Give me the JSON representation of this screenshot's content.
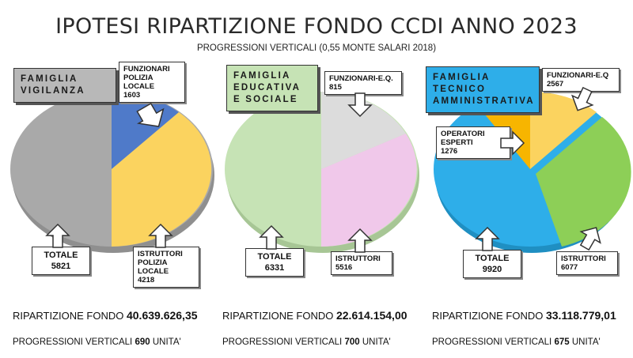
{
  "title": "IPOTESI RIPARTIZIONE FONDO CCDI ANNO 2023",
  "subtitle": "PROGRESSIONI VERTICALI (0,55 MONTE SALARI 2018)",
  "labels": {
    "fondo": "RIPARTIZIONE FONDO",
    "progressioni": "PROGRESSIONI VERTICALI",
    "unita": "UNITA'",
    "totale": "TOTALE"
  },
  "colors": {
    "gray": "#a9a9a9",
    "blue": "#4f7ac9",
    "yellow": "#fbd35f",
    "light_green": "#c6e3b5",
    "light_gray": "#dcdcdc",
    "pink": "#f0c8ea",
    "cyan": "#2eaee9",
    "orange": "#f7b500",
    "green": "#8dcf57"
  },
  "chart_data": [
    {
      "type": "pie",
      "title": "FAMIGLIA VIGILANZA",
      "total": 5821,
      "slices": [
        {
          "label": "FUNZIONARI POLIZIA LOCALE",
          "value": 1603,
          "color": "#4f7ac9"
        },
        {
          "label": "ISTRUTTORI POLIZIA LOCALE",
          "value": 4218,
          "color": "#fbd35f"
        }
      ],
      "fondo": "40.639.626,35",
      "progressioni": "690"
    },
    {
      "type": "pie",
      "title": "FAMIGLIA EDUCATIVA E SOCIALE",
      "total": 6331,
      "slices": [
        {
          "label": "FUNZIONARI-E.Q.",
          "value": 815,
          "color": "#dcdcdc"
        },
        {
          "label": "ISTRUTTORI",
          "value": 5516,
          "color": "#f0c8ea"
        }
      ],
      "fondo": "22.614.154,00",
      "progressioni": "700"
    },
    {
      "type": "pie",
      "title": "FAMIGLIA TECNICO AMMINISTRATIVA",
      "total": 9920,
      "slices": [
        {
          "label": "OPERATORI ESPERTI",
          "value": 1276,
          "color": "#f7b500"
        },
        {
          "label": "FUNZIONARI-E.Q",
          "value": 2567,
          "color": "#fbd35f"
        },
        {
          "label": "ISTRUTTORI",
          "value": 6077,
          "color": "#8dcf57"
        }
      ],
      "fondo": "33.118.779,01",
      "progressioni": "675"
    }
  ]
}
